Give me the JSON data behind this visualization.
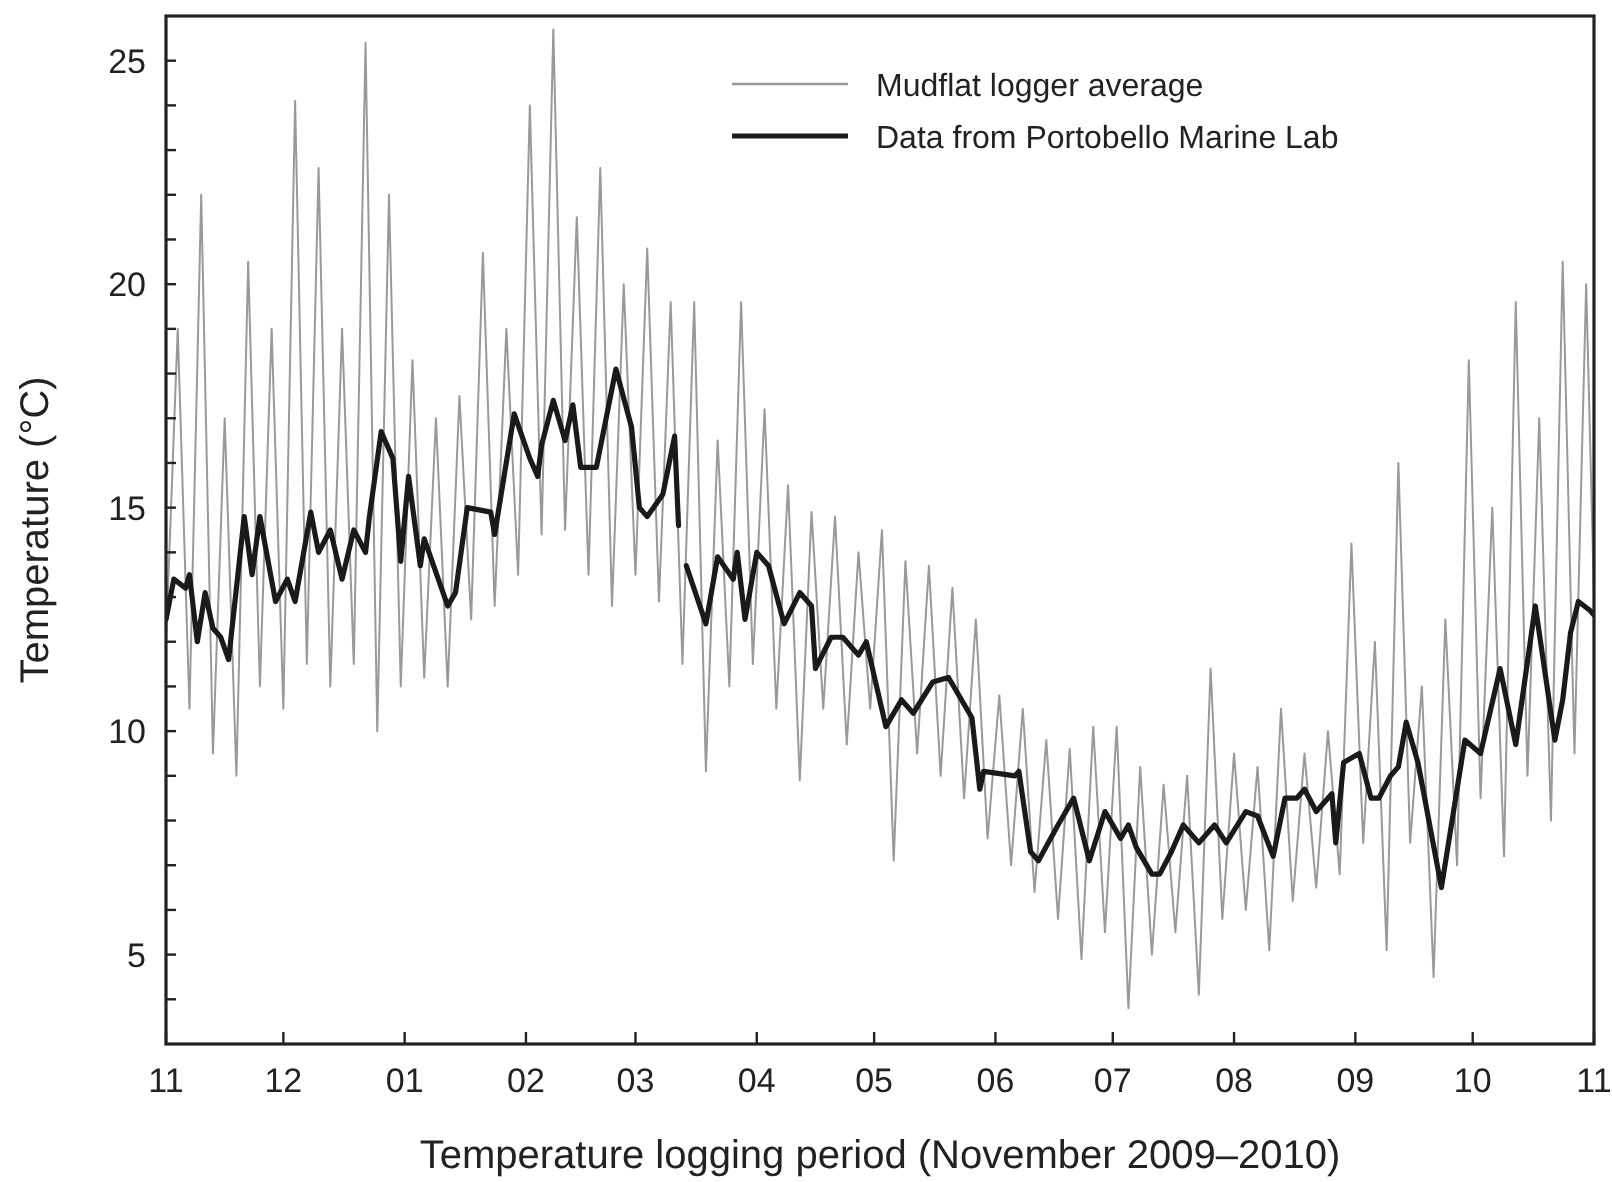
{
  "chart_data": {
    "type": "line",
    "xlabel": "Temperature logging period (November 2009–2010)",
    "ylabel": "Temperature (°C)",
    "xlim": [
      "2009-11-01",
      "2010-11-01"
    ],
    "xticks": [
      {
        "value": "2009-11-01",
        "label": "11"
      },
      {
        "value": "2009-12-01",
        "label": "12"
      },
      {
        "value": "2010-01-01",
        "label": "01"
      },
      {
        "value": "2010-02-01",
        "label": "02"
      },
      {
        "value": "2010-03-01",
        "label": "03"
      },
      {
        "value": "2010-04-01",
        "label": "04"
      },
      {
        "value": "2010-05-01",
        "label": "05"
      },
      {
        "value": "2010-06-01",
        "label": "06"
      },
      {
        "value": "2010-07-01",
        "label": "07"
      },
      {
        "value": "2010-08-01",
        "label": "08"
      },
      {
        "value": "2010-09-01",
        "label": "09"
      },
      {
        "value": "2010-10-01",
        "label": "10"
      },
      {
        "value": "2010-11-01",
        "label": "11"
      }
    ],
    "ylim": [
      3,
      26
    ],
    "yticks": [
      {
        "value": 4,
        "label": null
      },
      5,
      {
        "value": 6,
        "label": null
      },
      {
        "value": 7,
        "label": null
      },
      {
        "value": 8,
        "label": null
      },
      {
        "value": 9,
        "label": null
      },
      10,
      {
        "value": 11,
        "label": null
      },
      {
        "value": 12,
        "label": null
      },
      {
        "value": 13,
        "label": null
      },
      {
        "value": 14,
        "label": null
      },
      15,
      {
        "value": 16,
        "label": null
      },
      {
        "value": 17,
        "label": null
      },
      {
        "value": 18,
        "label": null
      },
      {
        "value": 19,
        "label": null
      },
      20,
      {
        "value": 21,
        "label": null
      },
      {
        "value": 22,
        "label": null
      },
      {
        "value": 23,
        "label": null
      },
      {
        "value": 24,
        "label": null
      },
      25
    ],
    "legend": "top right",
    "grid": false,
    "line_style": "solid",
    "marker": "none",
    "series": [
      {
        "name": "Mudflat logger average",
        "color": "#999999",
        "x": [
          "2009-11-01",
          "2009-11-04",
          "2009-11-07",
          "2009-11-10",
          "2009-11-13",
          "2009-11-16",
          "2009-11-19",
          "2009-11-22",
          "2009-11-25",
          "2009-11-28",
          "2009-12-01",
          "2009-12-04",
          "2009-12-07",
          "2009-12-10",
          "2009-12-13",
          "2009-12-16",
          "2009-12-19",
          "2009-12-22",
          "2009-12-25",
          "2009-12-28",
          "2009-12-31",
          "2010-01-03",
          "2010-01-06",
          "2010-01-09",
          "2010-01-12",
          "2010-01-15",
          "2010-01-18",
          "2010-01-21",
          "2010-01-24",
          "2010-01-27",
          "2010-01-30",
          "2010-02-02",
          "2010-02-05",
          "2010-02-08",
          "2010-02-11",
          "2010-02-14",
          "2010-02-17",
          "2010-02-20",
          "2010-02-23",
          "2010-02-26",
          "2010-03-01",
          "2010-03-04",
          "2010-03-07",
          "2010-03-10",
          "2010-03-13",
          "2010-03-16",
          "2010-03-19",
          "2010-03-22",
          "2010-03-25",
          "2010-03-28",
          "2010-03-31",
          "2010-04-03",
          "2010-04-06",
          "2010-04-09",
          "2010-04-12",
          "2010-04-15",
          "2010-04-18",
          "2010-04-21",
          "2010-04-24",
          "2010-04-27",
          "2010-04-30",
          "2010-05-03",
          "2010-05-06",
          "2010-05-09",
          "2010-05-12",
          "2010-05-15",
          "2010-05-18",
          "2010-05-21",
          "2010-05-24",
          "2010-05-27",
          "2010-05-30",
          "2010-06-02",
          "2010-06-05",
          "2010-06-08",
          "2010-06-11",
          "2010-06-14",
          "2010-06-17",
          "2010-06-20",
          "2010-06-23",
          "2010-06-26",
          "2010-06-29",
          "2010-07-02",
          "2010-07-05",
          "2010-07-08",
          "2010-07-11",
          "2010-07-14",
          "2010-07-17",
          "2010-07-20",
          "2010-07-23",
          "2010-07-26",
          "2010-07-29",
          "2010-08-01",
          "2010-08-04",
          "2010-08-07",
          "2010-08-10",
          "2010-08-13",
          "2010-08-16",
          "2010-08-19",
          "2010-08-22",
          "2010-08-25",
          "2010-08-28",
          "2010-08-31",
          "2010-09-03",
          "2010-09-06",
          "2010-09-09",
          "2010-09-12",
          "2010-09-15",
          "2010-09-18",
          "2010-09-21",
          "2010-09-24",
          "2010-09-27",
          "2010-09-30",
          "2010-10-03",
          "2010-10-06",
          "2010-10-09",
          "2010-10-12",
          "2010-10-15",
          "2010-10-18",
          "2010-10-21",
          "2010-10-24",
          "2010-10-27",
          "2010-10-30",
          "2010-11-01"
        ],
        "values": [
          12,
          19,
          10.5,
          22,
          9.5,
          17,
          9,
          20.5,
          11,
          19,
          10.5,
          24.1,
          11.5,
          22.6,
          11,
          19,
          11.5,
          25.4,
          10,
          22,
          11,
          18.3,
          11.2,
          17,
          11,
          17.5,
          12.5,
          20.7,
          12.8,
          19,
          13.5,
          24,
          14.4,
          25.7,
          14.5,
          21.5,
          13.5,
          22.6,
          12.8,
          20,
          13.5,
          20.8,
          12.9,
          19.6,
          11.5,
          19.6,
          9.1,
          16.5,
          11,
          19.6,
          11.5,
          17.2,
          10.5,
          15.5,
          8.9,
          14.9,
          10.5,
          14.8,
          9.7,
          14,
          10.5,
          14.5,
          7.1,
          13.8,
          9.5,
          13.7,
          9,
          13.2,
          8.5,
          12.5,
          7.6,
          10.8,
          7,
          10.5,
          6.4,
          9.8,
          5.8,
          9.6,
          4.9,
          10.1,
          5.5,
          10.1,
          3.8,
          9.2,
          5,
          8.8,
          5.5,
          9,
          4.1,
          11.4,
          5.8,
          9.5,
          6,
          9.2,
          5.1,
          10.5,
          6.2,
          9.5,
          6.5,
          10,
          6.8,
          14.2,
          7.5,
          12,
          5.1,
          16,
          7.5,
          11,
          4.5,
          12.5,
          7,
          18.3,
          8.5,
          15,
          7.2,
          19.6,
          9,
          17,
          8,
          20.5,
          9.5,
          20,
          13
        ]
      },
      {
        "name": "Data from Portobello Marine Lab",
        "color": "#1a1a1a",
        "x": [
          "2009-11-01",
          "2009-11-03",
          "2009-11-06",
          "2009-11-07",
          "2009-11-09",
          "2009-11-11",
          "2009-11-13",
          "2009-11-15",
          "2009-11-17",
          "2009-11-21",
          "2009-11-23",
          "2009-11-25",
          "2009-11-29",
          "2009-12-02",
          "2009-12-04",
          "2009-12-08",
          "2009-12-10",
          "2009-12-13",
          "2009-12-16",
          "2009-12-19",
          "2009-12-22",
          "2009-12-23",
          "2009-12-26",
          "2009-12-29",
          "2009-12-31",
          "2010-01-02",
          "2010-01-05",
          "2010-01-06",
          "2010-01-12",
          "2010-01-14",
          "2010-01-17",
          "2010-01-23",
          "2010-01-24",
          "2010-01-29",
          "2010-02-02",
          "2010-02-04",
          "2010-02-05",
          "2010-02-08",
          "2010-02-11",
          "2010-02-13",
          "2010-02-15",
          "2010-02-19",
          "2010-02-24",
          "2010-02-28",
          "2010-03-02",
          "2010-03-04",
          "2010-03-08",
          "2010-03-11",
          "2010-03-12",
          "2010-03-13",
          "2010-03-14",
          "2010-03-19",
          "2010-03-22",
          "2010-03-26",
          "2010-03-27",
          "2010-03-29",
          "2010-04-01",
          "2010-04-04",
          "2010-04-08",
          "2010-04-12",
          "2010-04-15",
          "2010-04-16",
          "2010-04-20",
          "2010-04-23",
          "2010-04-27",
          "2010-04-29",
          "2010-05-04",
          "2010-05-08",
          "2010-05-11",
          "2010-05-16",
          "2010-05-20",
          "2010-05-26",
          "2010-05-28",
          "2010-05-29",
          "2010-06-06",
          "2010-06-07",
          "2010-06-10",
          "2010-06-12",
          "2010-06-17",
          "2010-06-21",
          "2010-06-25",
          "2010-06-29",
          "2010-07-03",
          "2010-07-05",
          "2010-07-07",
          "2010-07-11",
          "2010-07-13",
          "2010-07-16",
          "2010-07-19",
          "2010-07-23",
          "2010-07-27",
          "2010-07-30",
          "2010-08-04",
          "2010-08-07",
          "2010-08-11",
          "2010-08-14",
          "2010-08-17",
          "2010-08-19",
          "2010-08-22",
          "2010-08-26",
          "2010-08-27",
          "2010-08-29",
          "2010-09-02",
          "2010-09-05",
          "2010-09-07",
          "2010-09-10",
          "2010-09-12",
          "2010-09-14",
          "2010-09-17",
          "2010-09-23",
          "2010-09-29",
          "2010-10-03",
          "2010-10-08",
          "2010-10-12",
          "2010-10-17",
          "2010-10-22",
          "2010-10-24",
          "2010-10-26",
          "2010-10-28",
          "2010-10-31",
          "2010-11-01"
        ],
        "values": [
          12.5,
          13.4,
          13.2,
          13.5,
          12,
          13.1,
          12.3,
          12.1,
          11.6,
          14.8,
          13.5,
          14.8,
          12.9,
          13.4,
          12.9,
          14.9,
          14,
          14.5,
          13.4,
          14.5,
          14,
          14.8,
          16.7,
          16.1,
          13.8,
          15.7,
          13.7,
          14.3,
          12.8,
          13.1,
          15,
          14.9,
          14.4,
          17.1,
          16.1,
          15.7,
          16.4,
          17.4,
          16.5,
          17.3,
          15.9,
          15.9,
          18.1,
          16.8,
          15,
          14.8,
          15.3,
          16.6,
          14.6,
          null,
          13.7,
          12.4,
          13.9,
          13.4,
          14,
          12.5,
          14,
          13.7,
          12.4,
          13.1,
          12.8,
          11.4,
          12.1,
          12.1,
          11.7,
          12,
          10.1,
          10.7,
          10.4,
          11.1,
          11.2,
          10.3,
          8.7,
          9.1,
          9,
          9.1,
          7.3,
          7.1,
          7.9,
          8.5,
          7.1,
          8.2,
          7.6,
          7.9,
          7.4,
          6.8,
          6.8,
          7.3,
          7.9,
          7.5,
          7.9,
          7.5,
          8.2,
          8.1,
          7.2,
          8.5,
          8.5,
          8.7,
          8.2,
          8.6,
          7.5,
          9.3,
          9.5,
          8.5,
          8.5,
          9,
          9.2,
          10.2,
          9.3,
          6.5,
          9.8,
          9.5,
          11.4,
          9.7,
          12.8,
          9.8,
          10.7,
          12.2,
          12.9,
          12.7,
          12.6
        ]
      }
    ]
  }
}
